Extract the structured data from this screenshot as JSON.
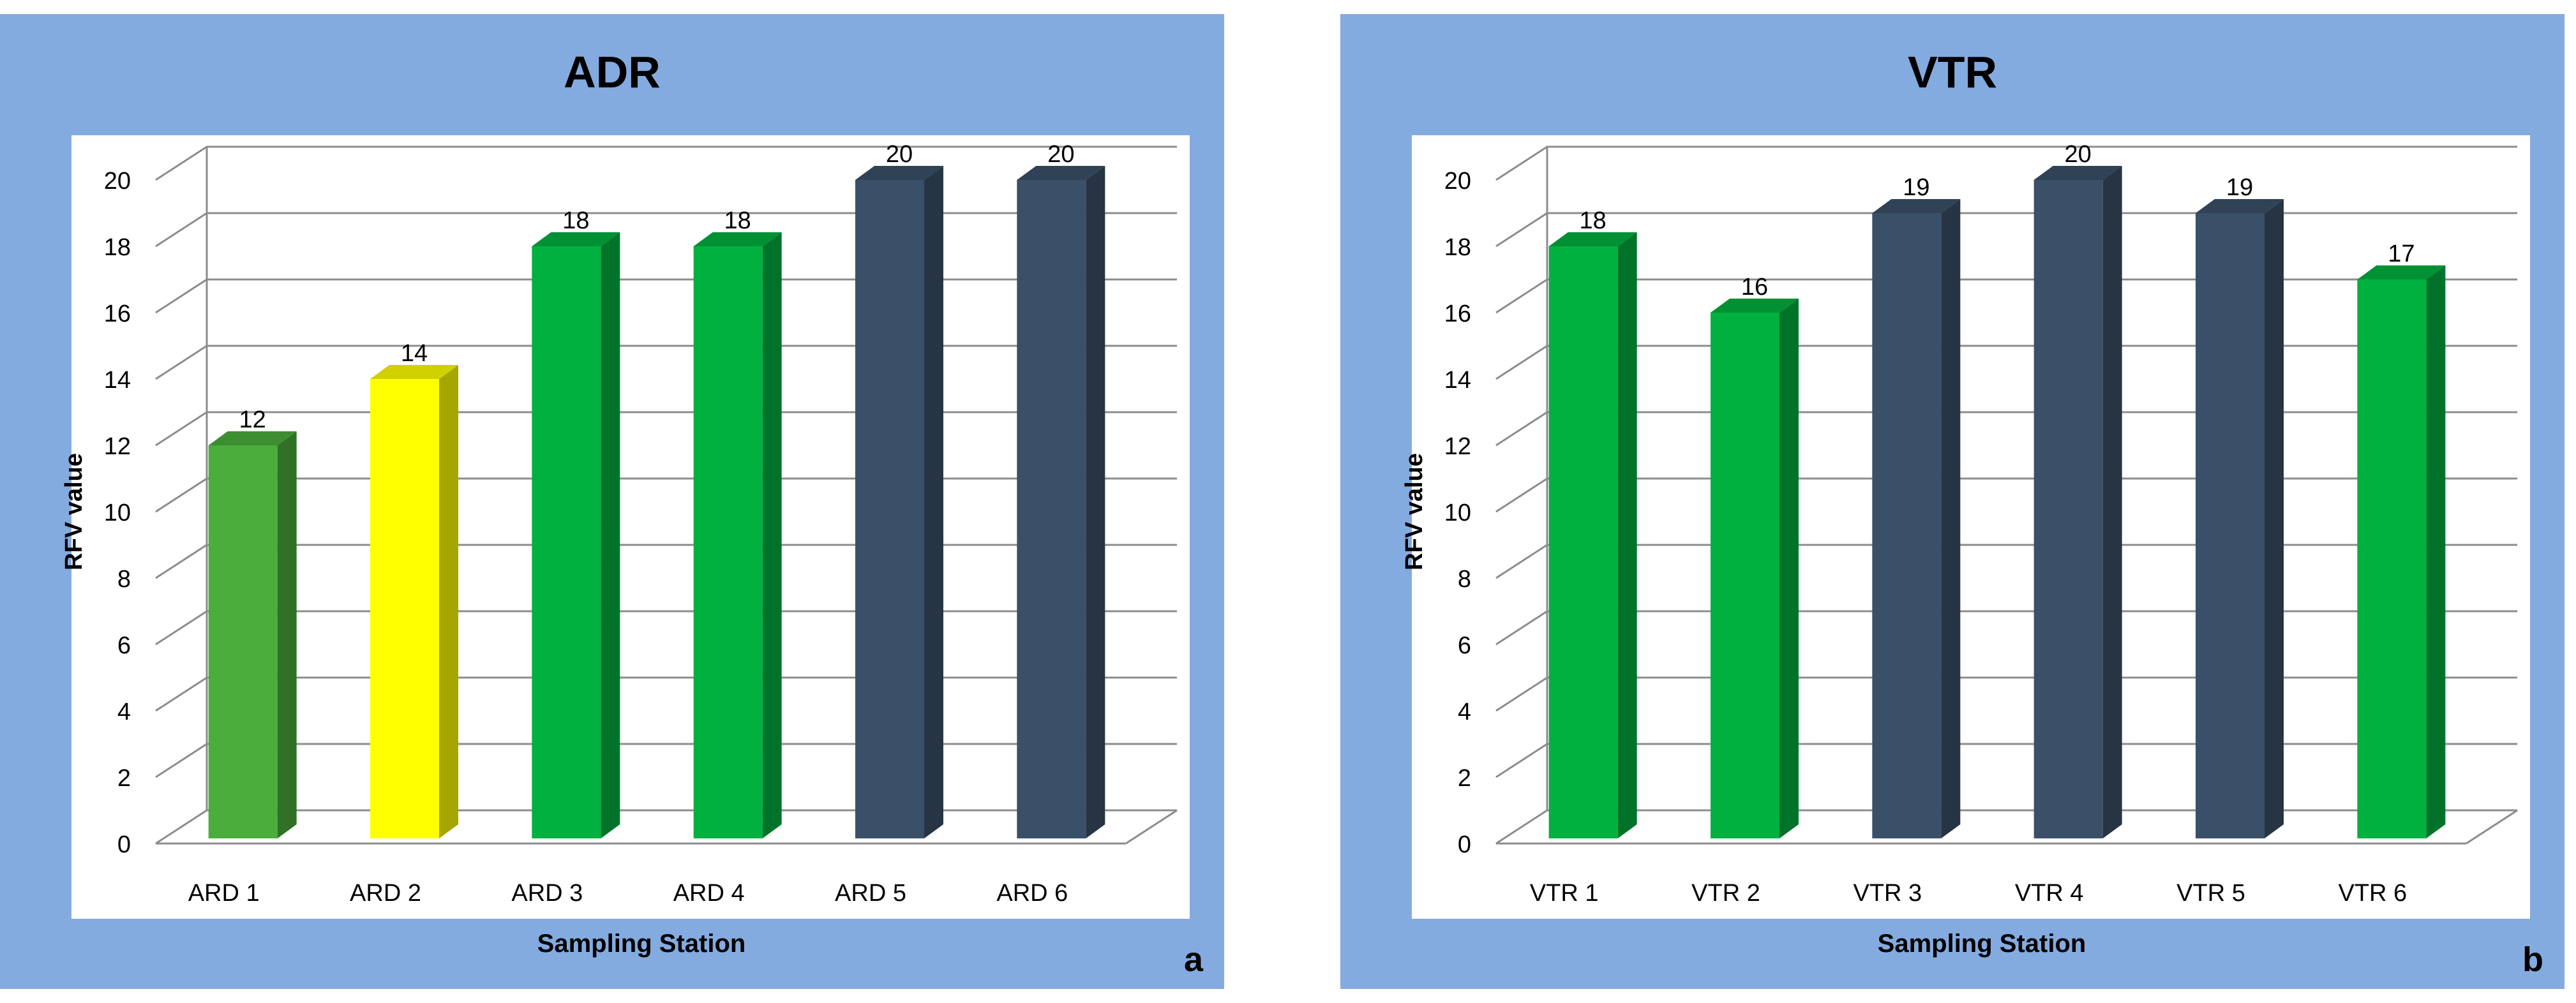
{
  "colors": {
    "panel_bg": "#84abdf",
    "plot_bg": "#ffffff",
    "grid": "#8c8c8c",
    "green_light": "#4aad3c",
    "green": "#00b140",
    "yellow": "#ffff00",
    "navy": "#3a5068"
  },
  "chart_data": [
    {
      "type": "bar",
      "title": "ADR",
      "xlabel": "Sampling Station",
      "ylabel": "RFV value",
      "panel_label": "a",
      "categories": [
        "ARD 1",
        "ARD 2",
        "ARD 3",
        "ARD 4",
        "ARD 5",
        "ARD 6"
      ],
      "values": [
        12,
        14,
        18,
        18,
        20,
        20
      ],
      "bar_colors": [
        "green_light",
        "yellow",
        "green",
        "green",
        "navy",
        "navy"
      ],
      "ylim": [
        0,
        20
      ],
      "yticks": [
        0,
        2,
        4,
        6,
        8,
        10,
        12,
        14,
        16,
        18,
        20
      ],
      "grid": true,
      "legend": "none"
    },
    {
      "type": "bar",
      "title": "VTR",
      "xlabel": "Sampling Station",
      "ylabel": "RFV value",
      "panel_label": "b",
      "categories": [
        "VTR 1",
        "VTR 2",
        "VTR 3",
        "VTR 4",
        "VTR 5",
        "VTR 6"
      ],
      "values": [
        18,
        16,
        19,
        20,
        19,
        17
      ],
      "bar_colors": [
        "green",
        "green",
        "navy",
        "navy",
        "navy",
        "green"
      ],
      "ylim": [
        0,
        20
      ],
      "yticks": [
        0,
        2,
        4,
        6,
        8,
        10,
        12,
        14,
        16,
        18,
        20
      ],
      "grid": true,
      "legend": "none"
    }
  ]
}
